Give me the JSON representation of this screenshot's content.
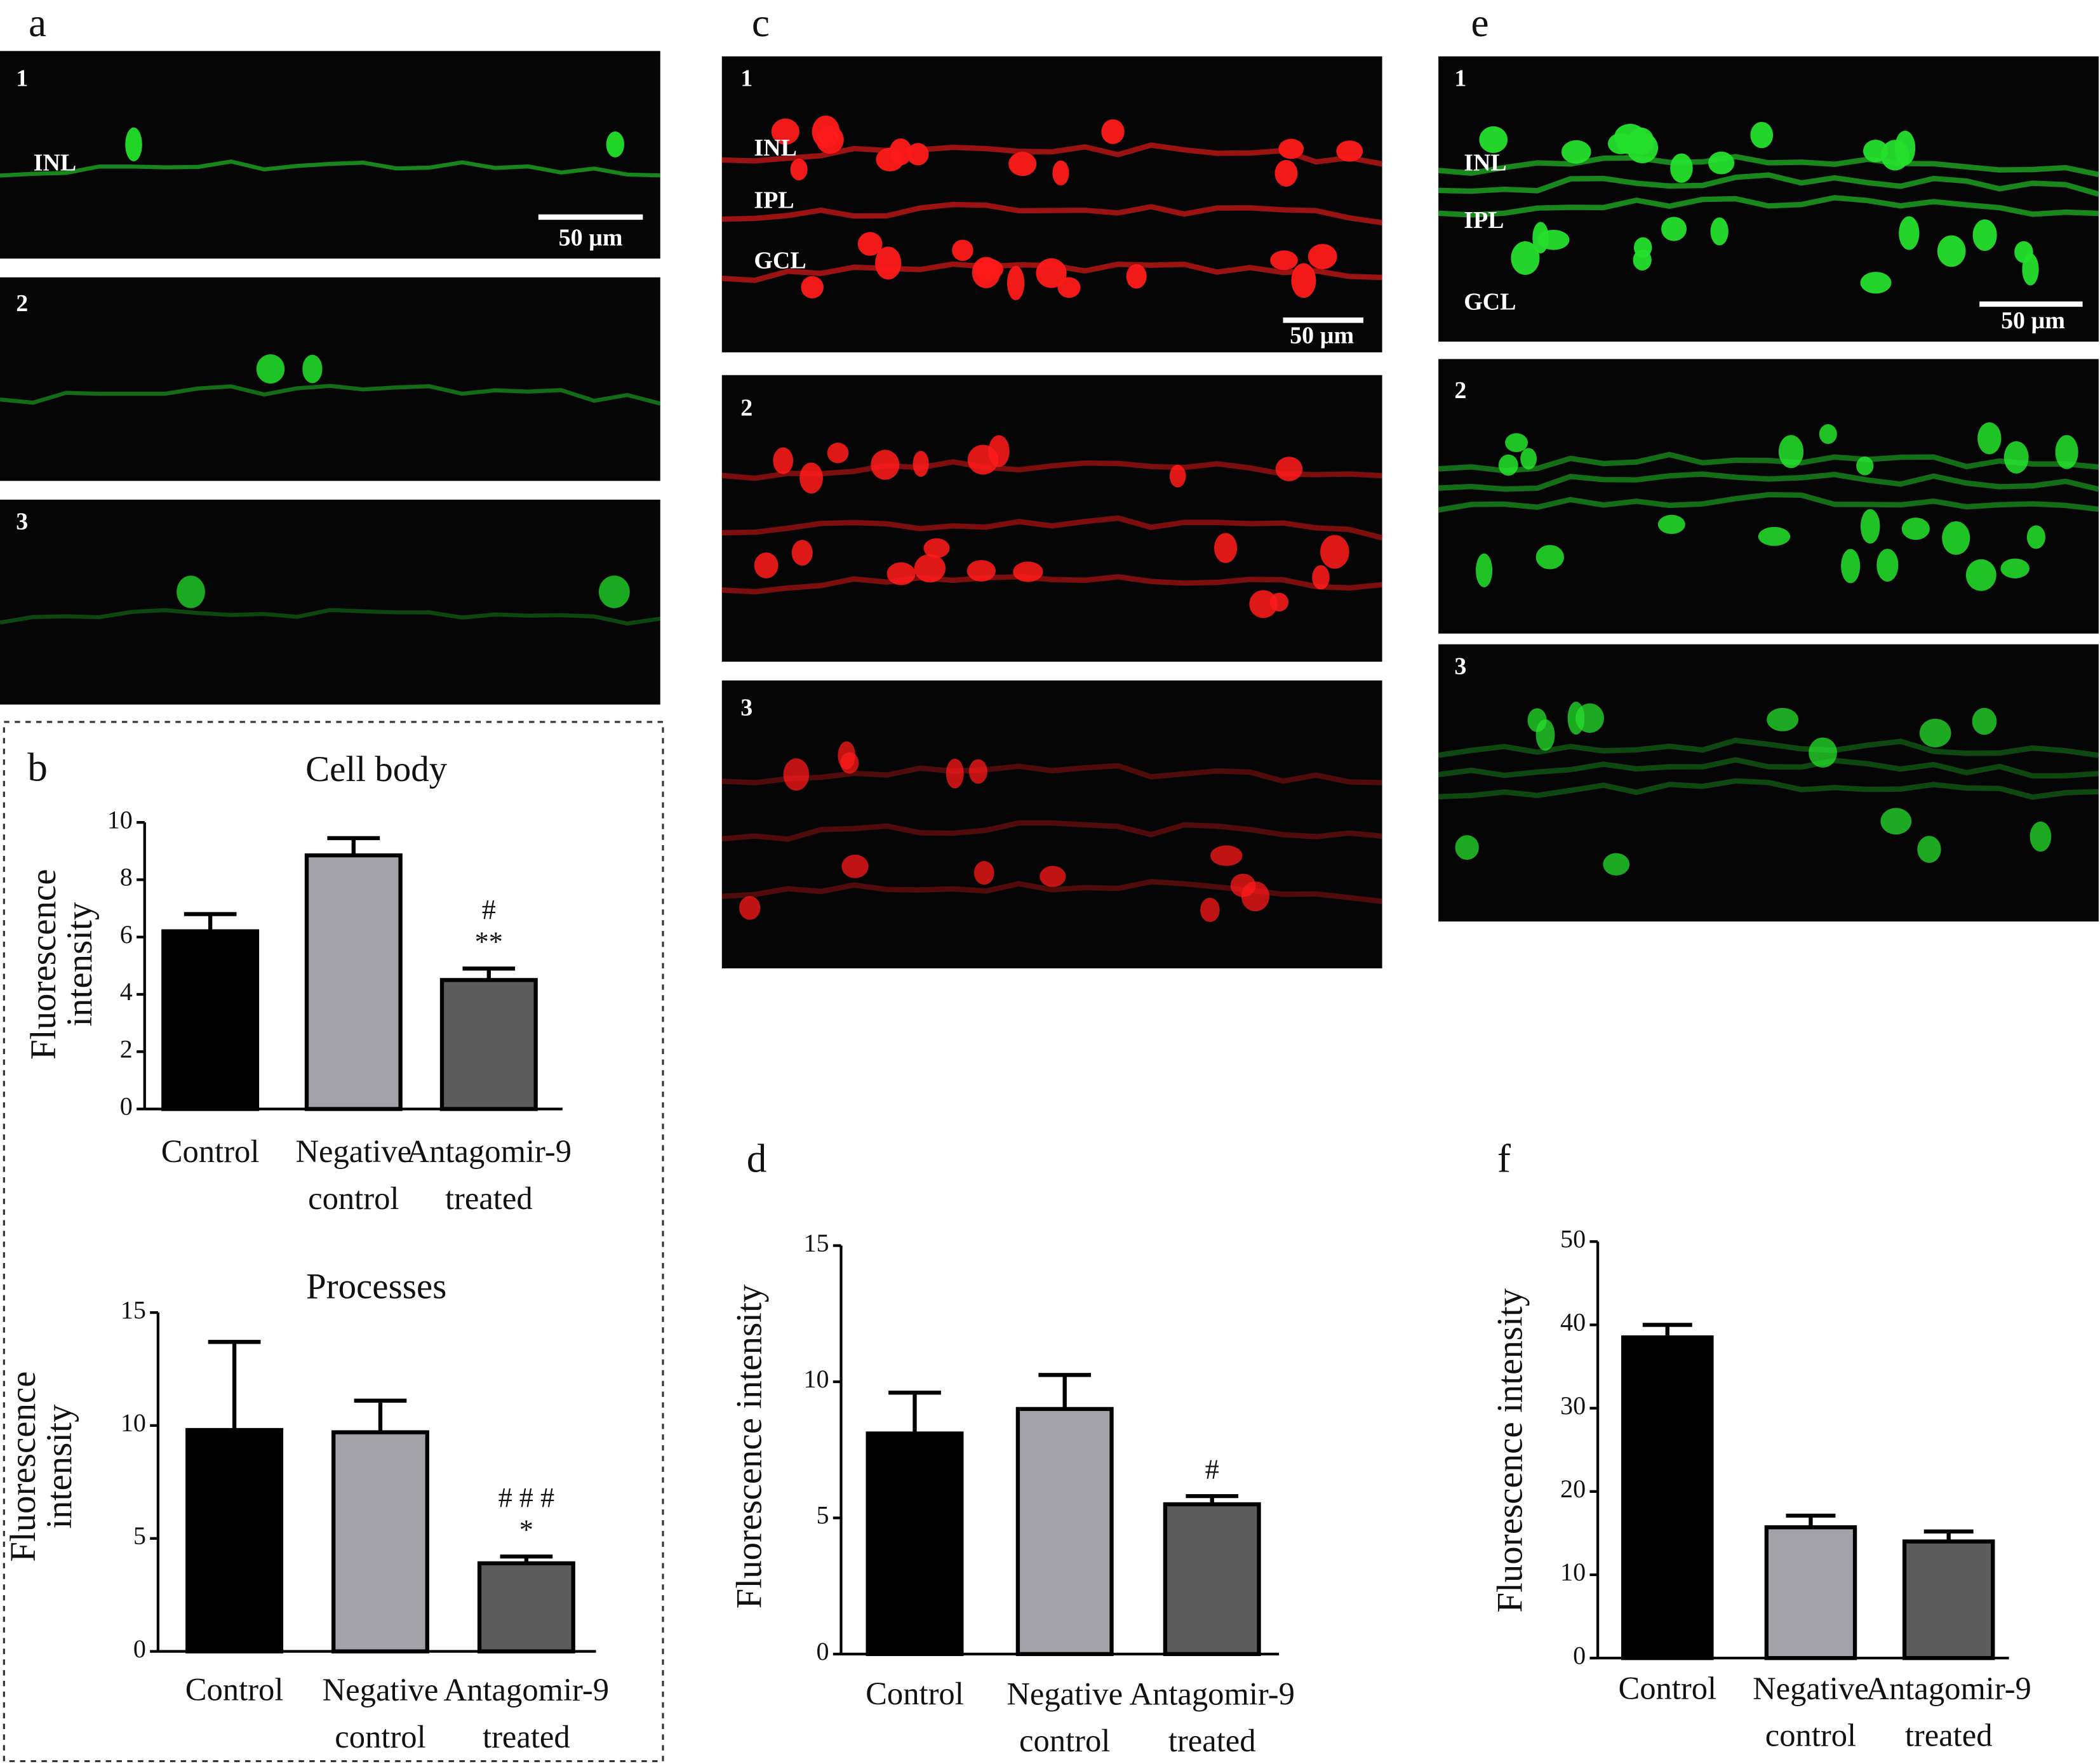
{
  "panel_labels": [
    "a",
    "b",
    "c",
    "d",
    "e",
    "f"
  ],
  "micrographs": [
    {
      "number": "1",
      "layers": [
        "INL"
      ],
      "scale_bar": "50 µm"
    },
    {
      "number": "2"
    },
    {
      "number": "3"
    },
    {
      "number": "1",
      "layers": [
        "INL",
        "IPL",
        "GCL"
      ],
      "scale_bar": "50 µm"
    },
    {
      "number": "2"
    },
    {
      "number": "3"
    },
    {
      "number": "1",
      "layers": [
        "INL",
        "IPL",
        "GCL"
      ],
      "scale_bar": "50 µm"
    },
    {
      "number": "2"
    },
    {
      "number": "3"
    }
  ],
  "chart_data": [
    {
      "type": "bar",
      "title": "Cell body",
      "ylabel": "Fluorescence\nintensity",
      "categories": [
        "Control",
        "Negative\ncontrol",
        "Antagomir-9\ntreated"
      ],
      "values": [
        6.2,
        8.85,
        4.5
      ],
      "errors": [
        0.6,
        0.6,
        0.4
      ],
      "colors": [
        "#000000",
        "#a2a2a8",
        "#5c5c5c"
      ],
      "ylim": [
        0,
        10
      ],
      "yticks": [
        0,
        2,
        4,
        6,
        8,
        10
      ],
      "annotations": [
        {
          "category": "Antagomir-9\ntreated",
          "lines": [
            "#",
            "**"
          ]
        }
      ]
    },
    {
      "type": "bar",
      "title": "Processes",
      "ylabel": "Fluorescence\nintensity",
      "categories": [
        "Control",
        "Negative\ncontrol",
        "Antagomir-9\ntreated"
      ],
      "values": [
        9.8,
        9.7,
        3.9
      ],
      "errors": [
        3.9,
        1.4,
        0.3
      ],
      "colors": [
        "#000000",
        "#a2a2a8",
        "#5c5c5c"
      ],
      "ylim": [
        0,
        15
      ],
      "yticks": [
        0,
        5,
        10,
        15
      ],
      "annotations": [
        {
          "category": "Antagomir-9\ntreated",
          "lines": [
            "# # #",
            "*"
          ]
        }
      ]
    },
    {
      "type": "bar",
      "ylabel": "Fluorescence intensity",
      "categories": [
        "Control",
        "Negative\ncontrol",
        "Antagomir-9\ntreated"
      ],
      "values": [
        8.1,
        9.0,
        5.5
      ],
      "errors": [
        1.5,
        1.25,
        0.3
      ],
      "colors": [
        "#000000",
        "#a2a2a8",
        "#5c5c5c"
      ],
      "ylim": [
        0,
        15
      ],
      "yticks": [
        0,
        5,
        10,
        15
      ],
      "annotations": [
        {
          "category": "Antagomir-9\ntreated",
          "lines": [
            "#"
          ]
        }
      ]
    },
    {
      "type": "bar",
      "ylabel": "Fluorescence intensity",
      "categories": [
        "Control",
        "Negative\ncontrol",
        "Antagomir-9\ntreated"
      ],
      "values": [
        38.5,
        15.7,
        14.0
      ],
      "errors": [
        1.5,
        1.4,
        1.2
      ],
      "colors": [
        "#000000",
        "#a2a2a8",
        "#5c5c5c"
      ],
      "ylim": [
        0,
        50
      ],
      "yticks": [
        0,
        10,
        20,
        30,
        40,
        50
      ]
    }
  ]
}
